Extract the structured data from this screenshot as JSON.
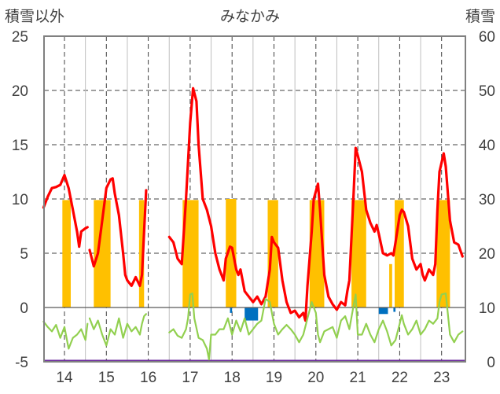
{
  "chart_data": {
    "type": "bar+line",
    "title": "みなかみ",
    "y_left_label": "積雪以外",
    "y_right_label": "積雪",
    "y_left_range": [
      -5,
      25
    ],
    "y_left_ticks": [
      -5,
      0,
      5,
      10,
      15,
      20,
      25
    ],
    "y_right_range": [
      0,
      60
    ],
    "y_right_ticks": [
      0,
      10,
      20,
      30,
      40,
      50,
      60
    ],
    "x_labels": [
      "14",
      "15",
      "16",
      "17",
      "18",
      "19",
      "20",
      "21",
      "22",
      "23"
    ],
    "grid": "dashed vertical at year centers, dashed horizontal at left ticks",
    "colors": {
      "red_line": "#ff0000",
      "green_line": "#92d050",
      "orange_bars": "#ffc000",
      "blue_bars": "#0070c0",
      "purple_baseline": "#7030a0",
      "axis": "#808080",
      "grid": "#404040"
    },
    "series": [
      {
        "color": "red",
        "axis": "left",
        "points": [
          [
            13.5,
            9.2
          ],
          [
            13.6,
            10.2
          ],
          [
            13.7,
            11.0
          ],
          [
            13.8,
            11.1
          ],
          [
            13.9,
            11.3
          ],
          [
            14.0,
            12.2
          ],
          [
            14.1,
            11.0
          ],
          [
            14.2,
            9.0
          ],
          [
            14.3,
            7.0
          ],
          [
            14.35,
            5.6
          ],
          [
            14.4,
            7.0
          ],
          [
            14.5,
            7.3
          ],
          [
            14.55,
            7.4
          ],
          null,
          [
            14.6,
            5.3
          ],
          [
            14.7,
            3.8
          ],
          [
            14.8,
            5.0
          ],
          [
            14.9,
            8.0
          ],
          [
            15.0,
            11.0
          ],
          [
            15.1,
            11.8
          ],
          [
            15.15,
            11.9
          ],
          [
            15.2,
            10.5
          ],
          [
            15.3,
            8.5
          ],
          [
            15.4,
            5.0
          ],
          [
            15.45,
            3.0
          ],
          [
            15.5,
            2.5
          ],
          [
            15.6,
            2.0
          ],
          [
            15.7,
            2.8
          ],
          [
            15.8,
            2.0
          ],
          [
            15.85,
            3.0
          ],
          [
            15.9,
            7.0
          ],
          [
            15.95,
            10.8
          ],
          null,
          [
            16.5,
            6.5
          ],
          [
            16.6,
            6.0
          ],
          [
            16.7,
            4.5
          ],
          [
            16.8,
            4.0
          ],
          [
            16.9,
            10.0
          ],
          [
            17.0,
            17.0
          ],
          [
            17.07,
            20.2
          ],
          [
            17.15,
            19.0
          ],
          [
            17.2,
            15.0
          ],
          [
            17.3,
            10.0
          ],
          [
            17.4,
            9.0
          ],
          [
            17.5,
            7.5
          ],
          [
            17.6,
            5.0
          ],
          [
            17.7,
            3.5
          ],
          [
            17.8,
            2.5
          ],
          [
            17.85,
            4.5
          ],
          [
            17.95,
            5.6
          ],
          [
            18.0,
            5.5
          ],
          [
            18.1,
            3.5
          ],
          [
            18.15,
            3.0
          ],
          [
            18.2,
            3.5
          ],
          [
            18.3,
            1.5
          ],
          [
            18.4,
            1.0
          ],
          [
            18.5,
            0.5
          ],
          [
            18.6,
            1.0
          ],
          [
            18.7,
            0.3
          ],
          [
            18.8,
            1.0
          ],
          [
            18.9,
            3.5
          ],
          [
            18.95,
            6.5
          ],
          [
            19.0,
            6.0
          ],
          [
            19.1,
            5.5
          ],
          [
            19.2,
            2.5
          ],
          [
            19.3,
            0.5
          ],
          [
            19.4,
            -0.5
          ],
          [
            19.5,
            -0.3
          ],
          [
            19.6,
            -0.9
          ],
          [
            19.7,
            -0.5
          ],
          [
            19.75,
            -1.2
          ],
          [
            19.8,
            2.0
          ],
          [
            19.9,
            7.0
          ],
          [
            19.95,
            10.0
          ],
          [
            20.05,
            11.4
          ],
          [
            20.1,
            9.0
          ],
          [
            20.2,
            3.0
          ],
          [
            20.3,
            1.0
          ],
          [
            20.4,
            0.3
          ],
          [
            20.5,
            -0.2
          ],
          [
            20.6,
            0.5
          ],
          [
            20.7,
            0.2
          ],
          [
            20.75,
            1.5
          ],
          [
            20.8,
            2.5
          ],
          [
            20.9,
            10.5
          ],
          [
            20.95,
            14.7
          ],
          [
            21.0,
            14.0
          ],
          [
            21.1,
            12.5
          ],
          [
            21.2,
            9.0
          ],
          [
            21.3,
            7.8
          ],
          [
            21.4,
            7.0
          ],
          [
            21.45,
            7.6
          ],
          [
            21.5,
            6.8
          ],
          [
            21.6,
            5.0
          ],
          [
            21.7,
            4.8
          ],
          [
            21.8,
            5.0
          ],
          [
            21.85,
            4.8
          ],
          [
            21.9,
            6.0
          ],
          [
            22.0,
            8.5
          ],
          [
            22.05,
            9.0
          ],
          [
            22.1,
            8.8
          ],
          [
            22.2,
            7.5
          ],
          [
            22.3,
            4.5
          ],
          [
            22.4,
            3.5
          ],
          [
            22.5,
            4.0
          ],
          [
            22.55,
            3.0
          ],
          [
            22.6,
            2.5
          ],
          [
            22.7,
            3.5
          ],
          [
            22.8,
            3.0
          ],
          [
            22.85,
            4.0
          ],
          [
            22.9,
            9.0
          ],
          [
            22.95,
            12.5
          ],
          [
            23.05,
            14.2
          ],
          [
            23.1,
            13.0
          ],
          [
            23.2,
            8.0
          ],
          [
            23.3,
            6.0
          ],
          [
            23.4,
            5.8
          ],
          [
            23.5,
            4.7
          ]
        ]
      },
      {
        "color": "green",
        "axis": "left",
        "points": [
          [
            13.5,
            -1.3
          ],
          [
            13.6,
            -1.8
          ],
          [
            13.7,
            -2.2
          ],
          [
            13.8,
            -1.6
          ],
          [
            13.9,
            -2.8
          ],
          [
            14.0,
            -1.8
          ],
          [
            14.1,
            -3.8
          ],
          [
            14.2,
            -2.8
          ],
          [
            14.3,
            -2.5
          ],
          [
            14.4,
            -2.0
          ],
          [
            14.5,
            -3.0
          ],
          [
            14.55,
            -1.5
          ],
          null,
          [
            14.6,
            -1.0
          ],
          [
            14.7,
            -2.0
          ],
          [
            14.8,
            -1.2
          ],
          [
            14.9,
            -2.5
          ],
          [
            15.0,
            -3.5
          ],
          [
            15.1,
            -2.0
          ],
          [
            15.2,
            -2.5
          ],
          [
            15.3,
            -1.0
          ],
          [
            15.4,
            -2.8
          ],
          [
            15.5,
            -1.5
          ],
          [
            15.6,
            -2.2
          ],
          [
            15.7,
            -1.8
          ],
          [
            15.8,
            -2.5
          ],
          [
            15.85,
            -1.5
          ],
          [
            15.9,
            -0.8
          ],
          [
            15.95,
            -0.6
          ],
          null,
          [
            16.5,
            -2.3
          ],
          [
            16.6,
            -2.0
          ],
          [
            16.7,
            -2.6
          ],
          [
            16.8,
            -2.8
          ],
          [
            16.9,
            -2.0
          ],
          [
            16.95,
            -1.0
          ],
          [
            17.0,
            1.2
          ],
          [
            17.05,
            1.3
          ],
          [
            17.1,
            -1.0
          ],
          [
            17.2,
            -2.8
          ],
          [
            17.3,
            -3.0
          ],
          [
            17.4,
            -3.8
          ],
          [
            17.45,
            -4.8
          ],
          [
            17.5,
            -2.5
          ],
          [
            17.6,
            -2.5
          ],
          [
            17.7,
            -2.0
          ],
          [
            17.8,
            -2.0
          ],
          [
            17.9,
            -1.0
          ],
          [
            18.0,
            -2.5
          ],
          [
            18.1,
            -1.2
          ],
          [
            18.2,
            -2.2
          ],
          [
            18.3,
            -1.0
          ],
          [
            18.4,
            -2.5
          ],
          [
            18.5,
            -2.0
          ],
          [
            18.6,
            -1.5
          ],
          [
            18.7,
            -1.2
          ],
          [
            18.8,
            0.8
          ],
          [
            18.9,
            0.5
          ],
          [
            19.0,
            -1.5
          ],
          [
            19.1,
            -2.5
          ],
          [
            19.2,
            -2.0
          ],
          [
            19.3,
            -1.6
          ],
          [
            19.4,
            -2.0
          ],
          [
            19.5,
            -2.5
          ],
          [
            19.6,
            -3.2
          ],
          [
            19.7,
            -2.5
          ],
          [
            19.8,
            -1.0
          ],
          [
            19.9,
            0.5
          ],
          [
            20.0,
            -0.5
          ],
          [
            20.05,
            -2.5
          ],
          [
            20.1,
            -3.2
          ],
          [
            20.2,
            -2.2
          ],
          [
            20.3,
            -2.0
          ],
          [
            20.4,
            -1.8
          ],
          [
            20.5,
            -2.8
          ],
          [
            20.6,
            -1.2
          ],
          [
            20.7,
            -0.8
          ],
          [
            20.8,
            -2.0
          ],
          [
            20.9,
            0.2
          ],
          [
            20.95,
            1.2
          ],
          [
            21.0,
            -2.5
          ],
          [
            21.1,
            -2.5
          ],
          [
            21.2,
            -1.5
          ],
          [
            21.3,
            -2.5
          ],
          [
            21.4,
            -3.2
          ],
          [
            21.5,
            -2.0
          ],
          [
            21.6,
            -1.2
          ],
          [
            21.7,
            -2.2
          ],
          [
            21.8,
            -3.5
          ],
          [
            21.9,
            -3.0
          ],
          [
            22.0,
            -1.5
          ],
          [
            22.05,
            -0.7
          ],
          [
            22.1,
            -1.5
          ],
          [
            22.2,
            -2.5
          ],
          [
            22.3,
            -2.0
          ],
          [
            22.4,
            -1.2
          ],
          [
            22.5,
            -2.5
          ],
          [
            22.6,
            -2.0
          ],
          [
            22.7,
            -1.2
          ],
          [
            22.8,
            -1.5
          ],
          [
            22.9,
            -1.0
          ],
          [
            22.95,
            0.5
          ],
          [
            23.0,
            1.2
          ],
          [
            23.1,
            1.3
          ],
          [
            23.2,
            -2.5
          ],
          [
            23.3,
            -3.2
          ],
          [
            23.4,
            -2.5
          ],
          [
            23.5,
            -2.2
          ]
        ]
      }
    ],
    "orange_bars": [
      [
        13.95,
        14.15,
        9.9
      ],
      [
        14.05,
        14.12,
        7.0
      ],
      [
        14.7,
        15.1,
        9.9
      ],
      [
        15.78,
        15.9,
        9.9
      ],
      [
        16.82,
        17.2,
        9.9
      ],
      [
        17.85,
        18.1,
        10.0
      ],
      [
        17.92,
        18.0,
        9.0
      ],
      [
        18.85,
        19.1,
        9.9
      ],
      [
        19.85,
        20.2,
        9.9
      ],
      [
        20.85,
        21.2,
        9.9
      ],
      [
        21.88,
        22.1,
        9.9
      ],
      [
        21.75,
        21.82,
        4.0
      ],
      [
        22.88,
        23.2,
        9.9
      ],
      [
        23.05,
        23.15,
        7.0
      ]
    ],
    "blue_bars": [
      [
        18.3,
        18.62,
        -1.2
      ],
      [
        17.95,
        18.0,
        -0.5
      ],
      [
        21.5,
        21.72,
        -0.6
      ],
      [
        21.85,
        21.9,
        -0.4
      ]
    ]
  }
}
